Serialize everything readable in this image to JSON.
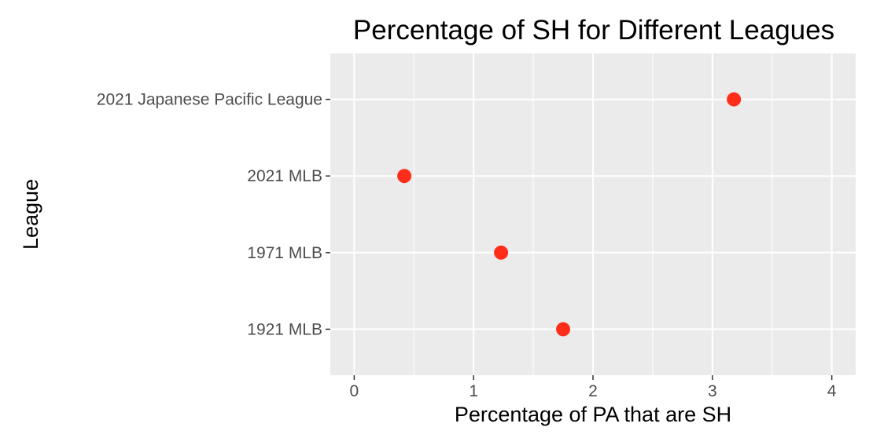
{
  "chart_data": {
    "type": "scatter",
    "title": "Percentage of SH for Different Leagues",
    "xlabel": "Percentage of PA that are SH",
    "ylabel": "League",
    "xlim": [
      -0.2,
      4.2
    ],
    "x_ticks": [
      0,
      1,
      2,
      3,
      4
    ],
    "x_tick_labels": [
      "0",
      "1",
      "2",
      "3",
      "4"
    ],
    "categories": [
      "1921 MLB",
      "1971 MLB",
      "2021 MLB",
      "2021 Japanese Pacific League"
    ],
    "series": [
      {
        "points": [
          {
            "league": "1921 MLB",
            "x": 1.75
          },
          {
            "league": "1971 MLB",
            "x": 1.23
          },
          {
            "league": "2021 MLB",
            "x": 0.42
          },
          {
            "league": "2021 Japanese Pacific League",
            "x": 3.18
          }
        ]
      }
    ],
    "grid": true,
    "legend": "none",
    "colors": {
      "point": "#ff2d1a",
      "panel": "#ebebeb",
      "grid": "#ffffff",
      "tick": "#333333"
    }
  }
}
